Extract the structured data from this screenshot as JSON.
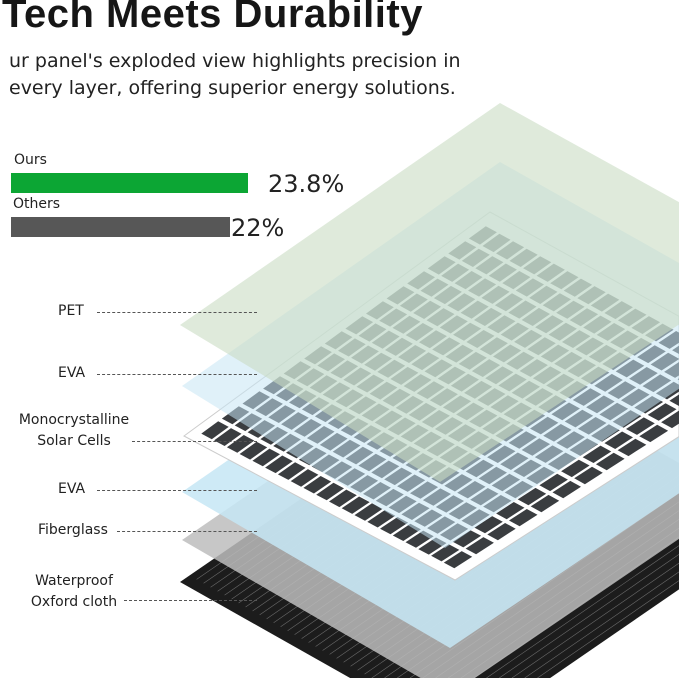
{
  "title": "Tech Meets Durability",
  "subtitle": "ur panel's exploded view highlights precision in every layer, offering superior energy solutions.",
  "efficiency_comparison": [
    {
      "label": "Ours",
      "value": "23.8%",
      "percent": 23.8,
      "color": "#0ca634"
    },
    {
      "label": "Others",
      "value": "22%",
      "percent": 22,
      "color": "#575757"
    }
  ],
  "layers": [
    {
      "label": "PET",
      "color": "#c9dcc3"
    },
    {
      "label": "EVA",
      "color": "#c6e6f4"
    },
    {
      "label": "Monocrystalline Solar Cells",
      "line1": "Monocrystalline",
      "line2": "Solar Cells",
      "color": "#ffffff"
    },
    {
      "label": "EVA",
      "color": "#c6e6f4"
    },
    {
      "label": "Fiberglass",
      "color": "#bdbdbd"
    },
    {
      "label": "Waterproof Oxford cloth",
      "line1": "Waterproof",
      "line2": "Oxford cloth",
      "color": "#1c1c1c"
    }
  ]
}
